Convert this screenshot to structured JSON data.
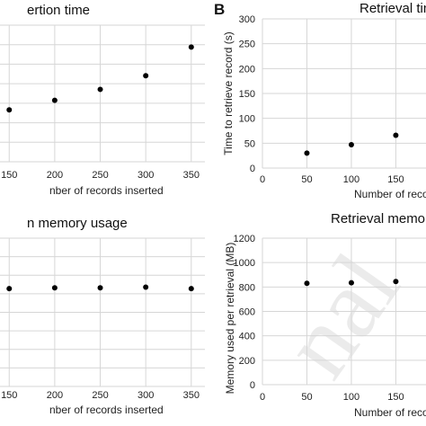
{
  "chart_data": [
    {
      "type": "scatter",
      "title": "ertion time",
      "xlabel": "nber of records inserted",
      "ylabel": "",
      "xticks": [
        "150",
        "200",
        "250",
        "300",
        "350"
      ],
      "x": [
        150,
        200,
        250,
        300,
        350
      ],
      "y": [
        0.38,
        0.45,
        0.53,
        0.63,
        0.84
      ],
      "grid": true
    },
    {
      "type": "scatter",
      "panel_label": "B",
      "title": "Retrieval tim",
      "xlabel": "Number of recor",
      "ylabel": "Time to retrieve record (s)",
      "xticks": [
        "0",
        "50",
        "100",
        "150"
      ],
      "yticks": [
        "0",
        "50",
        "100",
        "150",
        "200",
        "250",
        "300"
      ],
      "ylim": [
        0,
        300
      ],
      "x": [
        50,
        100,
        150
      ],
      "y": [
        30,
        47,
        66
      ],
      "grid": true
    },
    {
      "type": "scatter",
      "title": "n memory usage",
      "xlabel": "nber of records inserted",
      "ylabel": "",
      "xticks": [
        "150",
        "200",
        "250",
        "300",
        "350"
      ],
      "x": [
        150,
        200,
        250,
        300,
        350
      ],
      "y": [
        0.66,
        0.665,
        0.665,
        0.67,
        0.66
      ],
      "grid": true
    },
    {
      "type": "scatter",
      "title": "Retrieval memor",
      "xlabel": "Number of reco",
      "ylabel": "Memory used per retrieval (MB)",
      "xticks": [
        "0",
        "50",
        "100",
        "150"
      ],
      "yticks": [
        "0",
        "200",
        "400",
        "600",
        "800",
        "1000",
        "1200"
      ],
      "ylim": [
        0,
        1200
      ],
      "x": [
        50,
        100,
        150
      ],
      "y": [
        830,
        835,
        845
      ],
      "grid": true
    }
  ],
  "watermark": "nal"
}
